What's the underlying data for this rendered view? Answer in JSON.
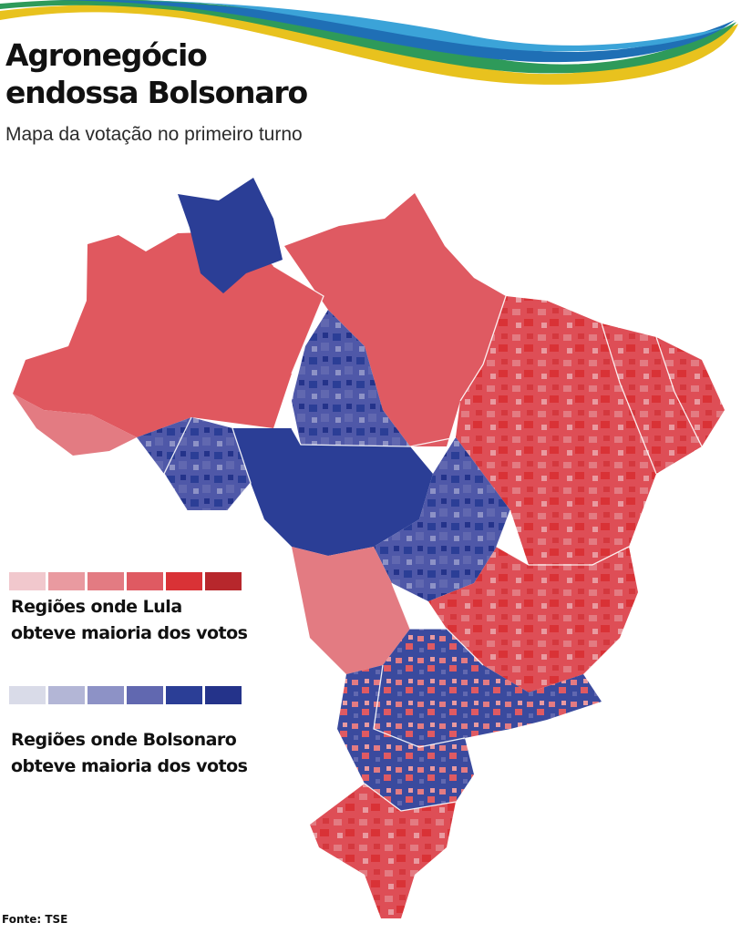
{
  "header": {
    "title_line1": "Agronegócio",
    "title_line2": "endossa Bolsonaro",
    "subtitle": "Mapa da votação no primeiro turno"
  },
  "legend": {
    "lula": {
      "label_line1": "Regiões onde Lula",
      "label_line2": "obteve maioria dos votos",
      "colors": [
        "#f1c8cd",
        "#e99aa0",
        "#e37b82",
        "#df5a62",
        "#d93236",
        "#b7272c"
      ]
    },
    "bolsonaro": {
      "label_line1": "Regiões onde Bolsonaro",
      "label_line2": "obteve maioria dos votos",
      "colors": [
        "#d9dbe8",
        "#b3b6d6",
        "#8d92c6",
        "#6168b0",
        "#2b3e96",
        "#24338a"
      ]
    }
  },
  "source": "Fonte: TSE",
  "colors": {
    "swoosh_yellow": "#e8c21e",
    "swoosh_green": "#2e9a5a",
    "swoosh_blue": "#1f6fb5",
    "swoosh_light_blue": "#3ba3d8"
  }
}
